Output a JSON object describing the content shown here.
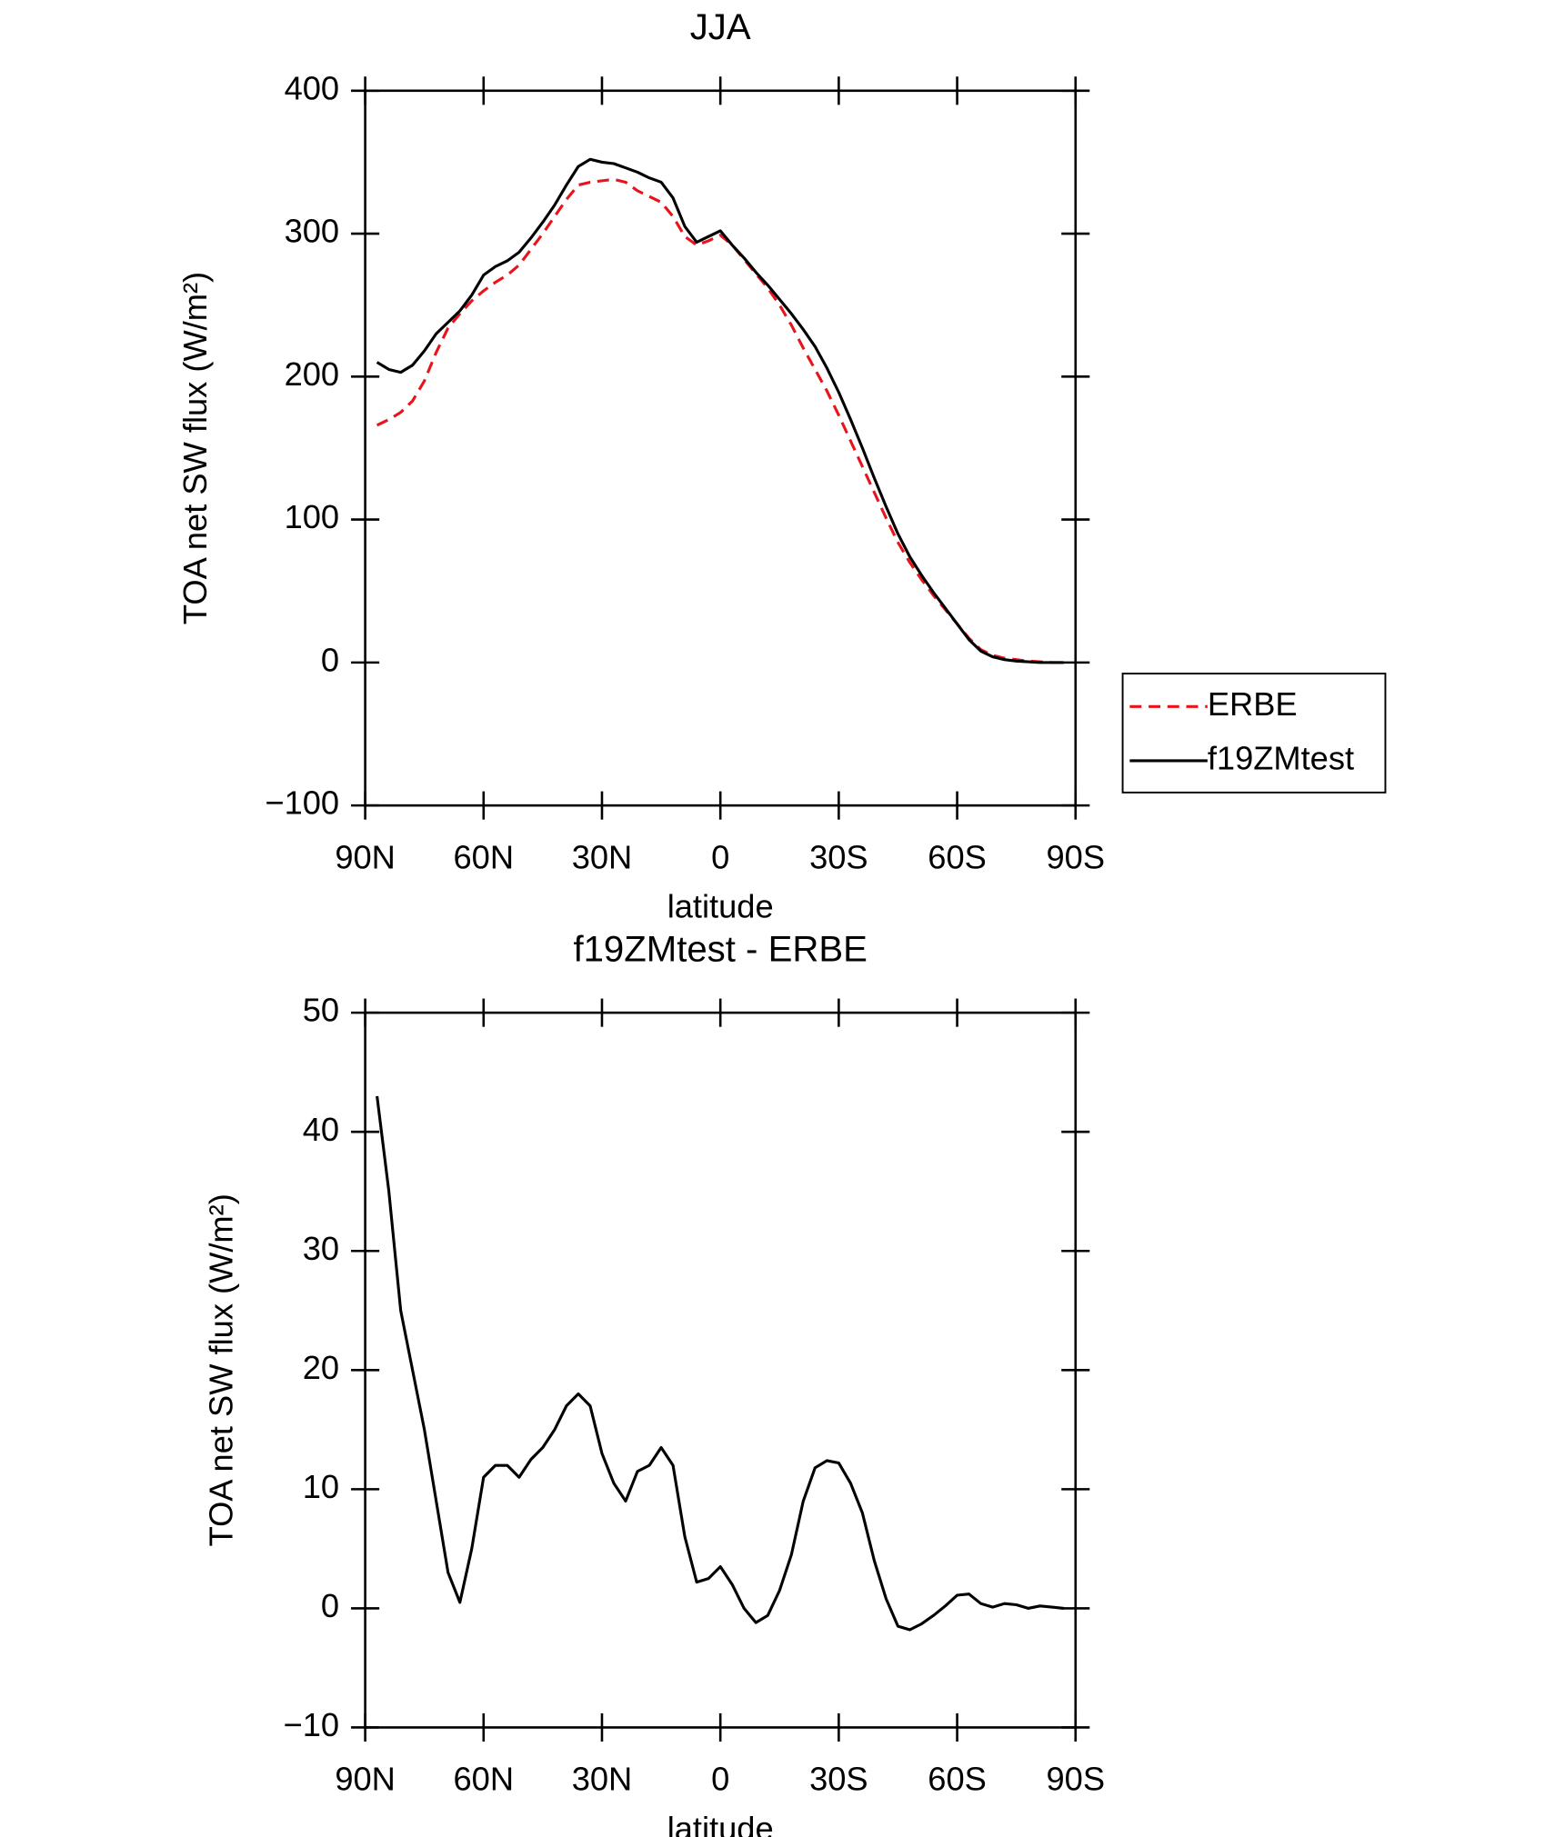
{
  "chart_data": [
    {
      "type": "line",
      "title": "JJA",
      "xlabel": "latitude",
      "ylabel": "TOA net SW flux (W/m²)",
      "x": [
        87,
        84,
        81,
        78,
        75,
        72,
        69,
        66,
        63,
        60,
        57,
        54,
        51,
        48,
        45,
        42,
        39,
        36,
        33,
        30,
        27,
        24,
        21,
        18,
        15,
        12,
        9,
        6,
        3,
        0,
        -3,
        -6,
        -9,
        -12,
        -15,
        -18,
        -21,
        -24,
        -27,
        -30,
        -33,
        -36,
        -39,
        -42,
        -45,
        -48,
        -51,
        -54,
        -57,
        -60,
        -63,
        -66,
        -69,
        -72,
        -75,
        -78,
        -81,
        -84,
        -87
      ],
      "series": [
        {
          "name": "ERBE",
          "color": "#e8141c",
          "dash": true,
          "values": [
            166,
            170,
            175,
            183,
            197,
            217,
            234,
            244,
            253,
            260,
            266,
            271,
            278,
            289,
            300,
            312,
            324,
            334,
            336,
            337,
            338,
            336,
            330,
            326,
            322,
            312,
            298,
            292,
            295,
            299,
            292,
            282,
            272,
            262,
            250,
            236,
            220,
            205,
            190,
            173,
            155,
            137,
            119,
            101,
            84,
            70,
            58,
            47,
            37,
            27,
            17,
            9,
            5,
            3,
            2,
            1,
            0.5,
            0,
            0
          ]
        },
        {
          "name": "f19ZMtest",
          "color": "#000000",
          "dash": false,
          "values": [
            210,
            205,
            203,
            208,
            218,
            230,
            238,
            246,
            257,
            271,
            277,
            281,
            287,
            297,
            308,
            320,
            334,
            347,
            352,
            350,
            349,
            346,
            343,
            339,
            336,
            325,
            305,
            294,
            298,
            302,
            292,
            283,
            273,
            264,
            254,
            244,
            233,
            221,
            206,
            189,
            170,
            150,
            129,
            109,
            90,
            74,
            61,
            49,
            38,
            27,
            16,
            8,
            4,
            2,
            1,
            0.5,
            0,
            0,
            0
          ]
        }
      ],
      "xlim": [
        90,
        -90
      ],
      "xticks": [
        {
          "value": 90,
          "label": "90N"
        },
        {
          "value": 60,
          "label": "60N"
        },
        {
          "value": 30,
          "label": "30N"
        },
        0,
        {
          "value": -30,
          "label": "30S"
        },
        {
          "value": -60,
          "label": "60S"
        },
        {
          "value": -90,
          "label": "90S"
        }
      ],
      "ylim": [
        -100,
        400
      ],
      "yticks": [
        {
          "value": -100,
          "label": "−100"
        },
        0,
        100,
        200,
        300,
        400
      ],
      "legend": "right"
    },
    {
      "type": "line",
      "title": "f19ZMtest - ERBE",
      "xlabel": "latitude",
      "ylabel": "TOA net SW flux (W/m²)",
      "x": [
        87,
        84,
        81,
        78,
        75,
        72,
        69,
        66,
        63,
        60,
        57,
        54,
        51,
        48,
        45,
        42,
        39,
        36,
        33,
        30,
        27,
        24,
        21,
        18,
        15,
        12,
        9,
        6,
        3,
        0,
        -3,
        -6,
        -9,
        -12,
        -15,
        -18,
        -21,
        -24,
        -27,
        -30,
        -33,
        -36,
        -39,
        -42,
        -45,
        -48,
        -51,
        -54,
        -57,
        -60,
        -63,
        -66,
        -69,
        -72,
        -75,
        -78,
        -81,
        -84,
        -87
      ],
      "series": [
        {
          "color": "#000000",
          "dash": false,
          "values": [
            43,
            35,
            25,
            20,
            15,
            9,
            3,
            0.5,
            5,
            11,
            12,
            12,
            11,
            12.5,
            13.5,
            15,
            17,
            18,
            17,
            13,
            10.5,
            9,
            11.5,
            12,
            13.5,
            12,
            6,
            2.2,
            2.5,
            3.5,
            2,
            0,
            -1.2,
            -0.6,
            1.5,
            4.5,
            9,
            11.8,
            12.4,
            12.2,
            10.5,
            8,
            4,
            0.8,
            -1.5,
            -1.8,
            -1.3,
            -0.6,
            0.2,
            1.1,
            1.2,
            0.4,
            0.1,
            0.4,
            0.3,
            0,
            0.2,
            0.1,
            0
          ]
        }
      ],
      "xlim": [
        90,
        -90
      ],
      "xticks": [
        {
          "value": 90,
          "label": "90N"
        },
        {
          "value": 60,
          "label": "60N"
        },
        {
          "value": 30,
          "label": "30N"
        },
        0,
        {
          "value": -30,
          "label": "30S"
        },
        {
          "value": -60,
          "label": "60S"
        },
        {
          "value": -90,
          "label": "90S"
        }
      ],
      "ylim": [
        -10,
        50
      ],
      "yticks": [
        {
          "value": -10,
          "label": "−10"
        },
        0,
        10,
        20,
        30,
        40,
        50
      ]
    }
  ]
}
